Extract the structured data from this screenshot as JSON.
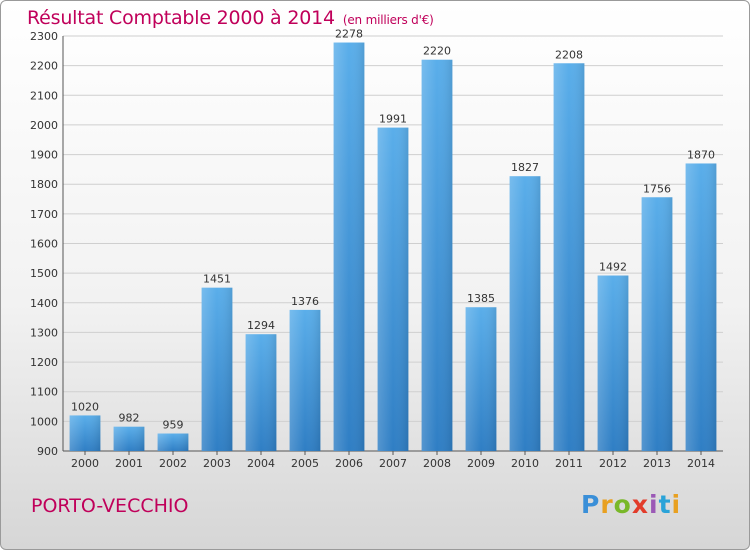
{
  "header": {
    "title": "Résultat Comptable 2000 à 2014",
    "subtitle": "(en milliers d'€)"
  },
  "footer": {
    "city": "PORTO-VECCHIO",
    "logo": {
      "letters": [
        "P",
        "r",
        "o",
        "x",
        "i",
        "t",
        "i"
      ],
      "colors": [
        "#3a8fd8",
        "#e8a020",
        "#79b829",
        "#e23c2b",
        "#9b59b6",
        "#2aa3d8",
        "#e8a020"
      ]
    }
  },
  "colors": {
    "bar_top": "#5aaeea",
    "bar_bottom": "#2f7ec4",
    "title": "#c0005a",
    "grid": "#cfcfcf"
  },
  "chart_data": {
    "type": "bar",
    "categories": [
      "2000",
      "2001",
      "2002",
      "2003",
      "2004",
      "2005",
      "2006",
      "2007",
      "2008",
      "2009",
      "2010",
      "2011",
      "2012",
      "2013",
      "2014"
    ],
    "values": [
      1020,
      982,
      959,
      1451,
      1294,
      1376,
      2278,
      1991,
      2220,
      1385,
      1827,
      2208,
      1492,
      1756,
      1870
    ],
    "value_labels": [
      "1020",
      "982",
      "959",
      "1451",
      "1294",
      "1376",
      "2278",
      "1991",
      "2220",
      "1385",
      "1827",
      "2208",
      "1492",
      "1756",
      "1870"
    ],
    "yticks": [
      900,
      1000,
      1100,
      1200,
      1300,
      1400,
      1500,
      1600,
      1700,
      1800,
      1900,
      2000,
      2100,
      2200,
      2300
    ],
    "ylim": [
      900,
      2300
    ],
    "grid": true,
    "legend": "none"
  }
}
